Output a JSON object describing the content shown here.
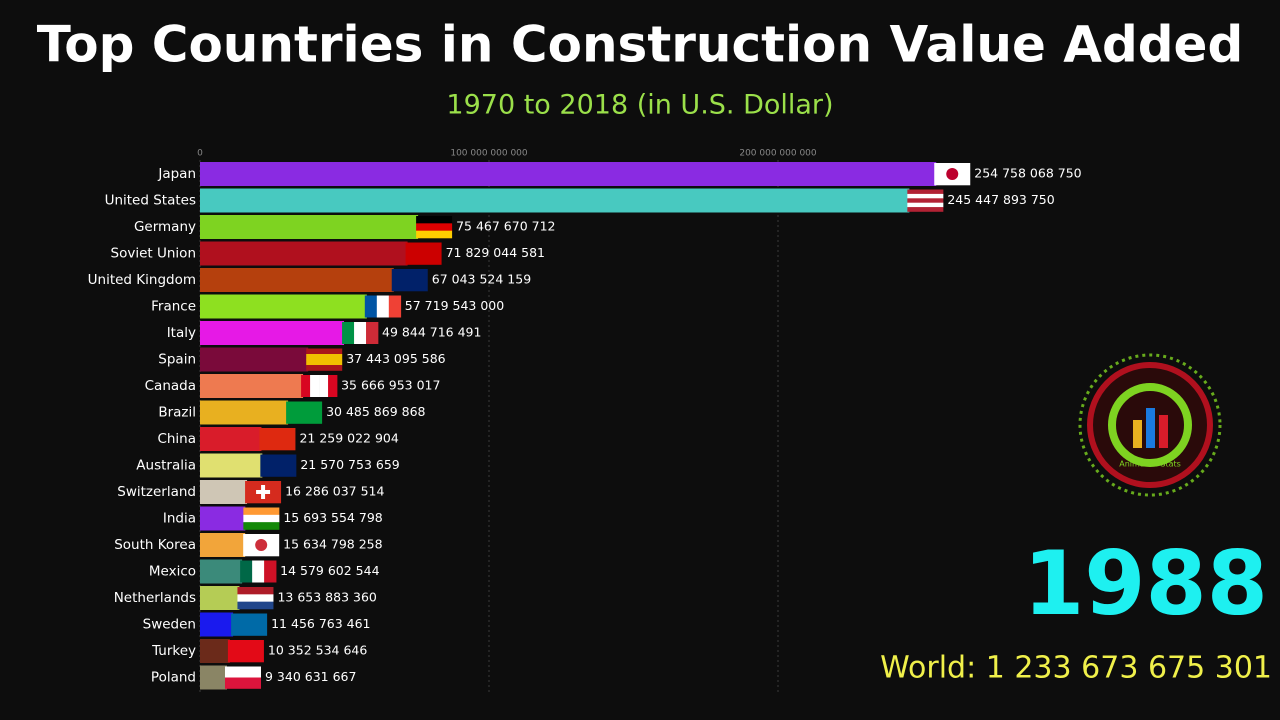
{
  "chart_data": {
    "type": "bar",
    "orientation": "horizontal",
    "title": "Top Countries in Construction Value Added",
    "subtitle": "1970 to 2018 (in U.S. Dollar)",
    "year": "1988",
    "total_label": "World: 1 233 673 675 301",
    "logo_text": "Animated Stats",
    "categories": [
      "Japan",
      "United States",
      "Germany",
      "Soviet Union",
      "United Kingdom",
      "France",
      "Italy",
      "Spain",
      "Canada",
      "Brazil",
      "China",
      "Australia",
      "Switzerland",
      "India",
      "South Korea",
      "Mexico",
      "Netherlands",
      "Sweden",
      "Turkey",
      "Poland"
    ],
    "values": [
      254758068750,
      245447893750,
      75467670712,
      71829044581,
      67043524159,
      57719543000,
      49844716491,
      37443095586,
      35666953017,
      30485869868,
      21259022904,
      21570753659,
      16286037514,
      15693554798,
      15634798258,
      14579602544,
      13653883360,
      11456763461,
      10352534646,
      9340631667
    ],
    "value_labels": [
      "254 758 068 750",
      "245 447 893 750",
      "75 467 670 712",
      "71 829 044 581",
      "67 043 524 159",
      "57 719 543 000",
      "49 844 716 491",
      "37 443 095 586",
      "35 666 953 017",
      "30 485 869 868",
      "21 259 022 904",
      "21 570 753 659",
      "16 286 037 514",
      "15 693 554 798",
      "15 634 798 258",
      "14 579 602 544",
      "13 653 883 360",
      "11 456 763 461",
      "10 352 534 646",
      "9 340 631 667"
    ],
    "colors": [
      "#8a2be2",
      "#48c9c0",
      "#7ed321",
      "#b0101e",
      "#b5400d",
      "#8ee020",
      "#e619e6",
      "#7a0a3a",
      "#ee7a50",
      "#e8b020",
      "#d91c2a",
      "#e0e070",
      "#cfc6b5",
      "#8a2be2",
      "#f2a53a",
      "#3b8a7a",
      "#b5cc55",
      "#1a1aee",
      "#6b2a1a",
      "#8a8565"
    ],
    "xlim": [
      0,
      300000000000
    ],
    "xticks": [
      0,
      {
        "value": 100000000000,
        "label": "100 000 000 000"
      },
      {
        "value": 200000000000,
        "label": "200 000 000 000"
      }
    ],
    "grid": true
  }
}
